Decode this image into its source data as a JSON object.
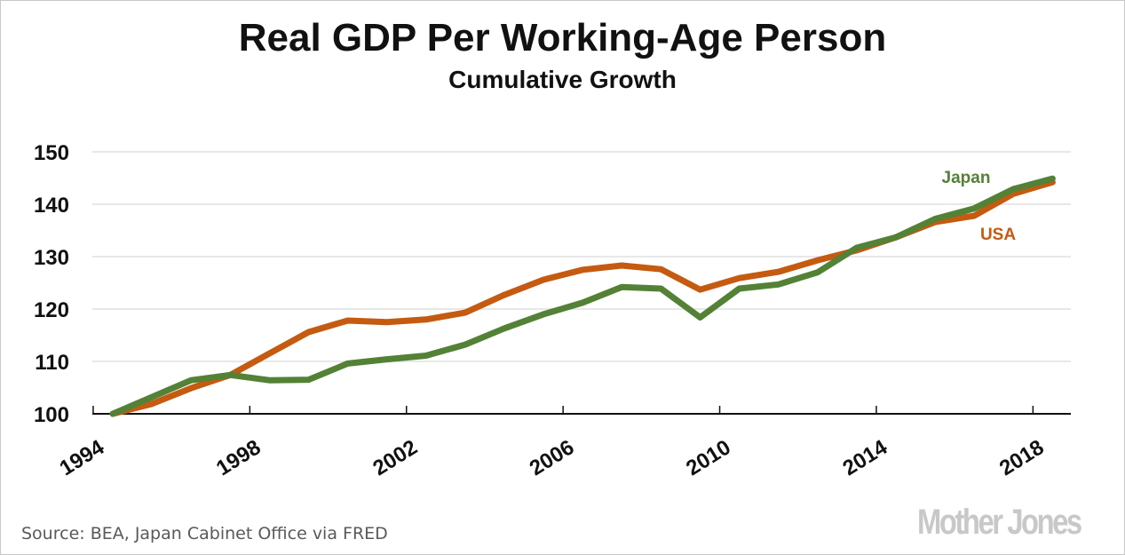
{
  "chart_data": {
    "type": "line",
    "title": "Real GDP Per Working-Age Person",
    "subtitle": "Cumulative Growth",
    "xlabel": "",
    "ylabel": "",
    "x": [
      1994,
      1995,
      1996,
      1997,
      1998,
      1999,
      2000,
      2001,
      2002,
      2003,
      2004,
      2005,
      2006,
      2007,
      2008,
      2009,
      2010,
      2011,
      2012,
      2013,
      2014,
      2015,
      2016,
      2017,
      2018
    ],
    "x_tick_labels": [
      "1994",
      "1998",
      "2002",
      "2006",
      "2010",
      "2014",
      "2018"
    ],
    "y_tick_labels": [
      "100",
      "110",
      "120",
      "130",
      "140",
      "150"
    ],
    "ylim": [
      100,
      150
    ],
    "grid": true,
    "series": [
      {
        "name": "USA",
        "color": "#c55a11",
        "values": [
          100.0,
          101.9,
          104.9,
          107.4,
          111.5,
          115.6,
          117.8,
          117.5,
          118.0,
          119.3,
          122.7,
          125.6,
          127.5,
          128.3,
          127.6,
          123.7,
          125.9,
          127.1,
          129.3,
          131.2,
          133.7,
          136.6,
          137.8,
          142.0,
          144.2
        ]
      },
      {
        "name": "Japan",
        "color": "#538135",
        "values": [
          100.0,
          103.2,
          106.4,
          107.4,
          106.4,
          106.5,
          109.6,
          110.4,
          111.1,
          113.2,
          116.3,
          119.0,
          121.2,
          124.2,
          123.9,
          118.4,
          123.9,
          124.7,
          127.0,
          131.7,
          133.7,
          137.2,
          139.2,
          142.9,
          144.9
        ]
      }
    ],
    "annotations": [
      {
        "text": "Japan",
        "series": "Japan",
        "color": "#538135"
      },
      {
        "text": "USA",
        "series": "USA",
        "color": "#c55a11"
      }
    ],
    "legend": "inline-labels-right"
  },
  "footer": {
    "source": "Source: BEA, Japan Cabinet Office via FRED",
    "brand": "Mother Jones"
  }
}
